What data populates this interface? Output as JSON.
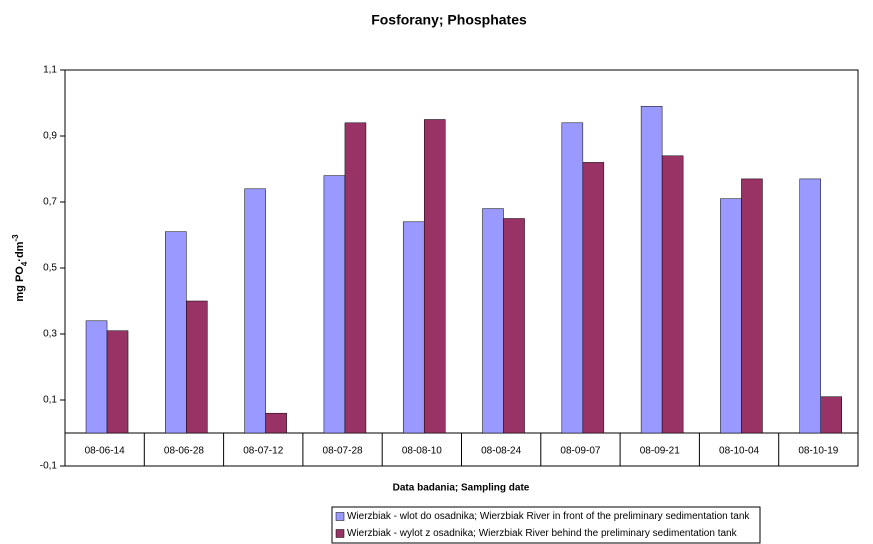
{
  "chart_data": {
    "type": "bar",
    "title": "Fosforany;  Phosphates",
    "xlabel": "Data badania; Sampling date",
    "ylabel_parts": [
      "mg PO",
      "4",
      "·dm",
      "-3"
    ],
    "categories": [
      "08-06-14",
      "08-06-28",
      "08-07-12",
      "08-07-28",
      "08-08-10",
      "08-08-24",
      "08-09-07",
      "08-09-21",
      "08-10-04",
      "08-10-19"
    ],
    "series": [
      {
        "name": "Wierzbiak - wlot do osadnika; Wierzbiak River in front of the preliminary sedimentation tank",
        "color": "#9999ff",
        "values": [
          0.34,
          0.61,
          0.74,
          0.78,
          0.64,
          0.68,
          0.94,
          0.99,
          0.71,
          0.77
        ]
      },
      {
        "name": "Wierzbiak - wylot z osadnika;  Wierzbiak River behind the preliminary sedimentation tank",
        "color": "#993366",
        "values": [
          0.31,
          0.4,
          0.06,
          0.94,
          0.95,
          0.65,
          0.82,
          0.84,
          0.77,
          0.11
        ]
      }
    ],
    "ylim": [
      -0.1,
      1.1
    ],
    "yticks": [
      {
        "value": -0.1,
        "label": "-0,1"
      },
      {
        "value": 0.1,
        "label": "0,1"
      },
      {
        "value": 0.3,
        "label": "0,3"
      },
      {
        "value": 0.5,
        "label": "0,5"
      },
      {
        "value": 0.7,
        "label": "0,7"
      },
      {
        "value": 0.9,
        "label": "0,9"
      },
      {
        "value": 1.1,
        "label": "1,1"
      }
    ],
    "legend": "bottom"
  }
}
